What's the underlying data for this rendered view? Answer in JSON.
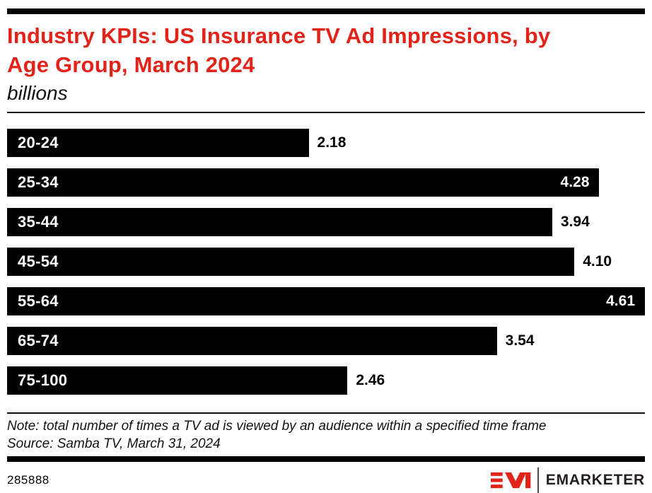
{
  "header": {
    "title_line1": "Industry KPIs: US Insurance TV Ad Impressions, by",
    "title_line2": "Age Group, March 2024",
    "units": "billions"
  },
  "colors": {
    "accent_red": "#e2231a",
    "bar_black": "#000000",
    "text_black": "#111111"
  },
  "chart_data": {
    "type": "bar",
    "orientation": "horizontal",
    "title": "Industry KPIs: US Insurance TV Ad Impressions, by Age Group, March 2024",
    "units": "billions",
    "categories": [
      "20-24",
      "25-34",
      "35-44",
      "45-54",
      "55-64",
      "65-74",
      "75-100"
    ],
    "values": [
      2.18,
      4.28,
      3.94,
      4.1,
      4.61,
      3.54,
      2.46
    ],
    "xlim": [
      0,
      4.61
    ],
    "grid": false,
    "legend": "none",
    "bars": [
      {
        "category": "20-24",
        "value": 2.18,
        "display": "2.18",
        "value_inside": false
      },
      {
        "category": "25-34",
        "value": 4.28,
        "display": "4.28",
        "value_inside": true
      },
      {
        "category": "35-44",
        "value": 3.94,
        "display": "3.94",
        "value_inside": false
      },
      {
        "category": "45-54",
        "value": 4.1,
        "display": "4.10",
        "value_inside": false
      },
      {
        "category": "55-64",
        "value": 4.61,
        "display": "4.61",
        "value_inside": true
      },
      {
        "category": "65-74",
        "value": 3.54,
        "display": "3.54",
        "value_inside": false
      },
      {
        "category": "75-100",
        "value": 2.46,
        "display": "2.46",
        "value_inside": false
      }
    ]
  },
  "footer": {
    "note": "Note: total number of times a TV ad is viewed by an audience within a specified time frame",
    "source": "Source: Samba TV, March 31, 2024",
    "chart_id": "285888",
    "brand": "EMARKETER"
  }
}
